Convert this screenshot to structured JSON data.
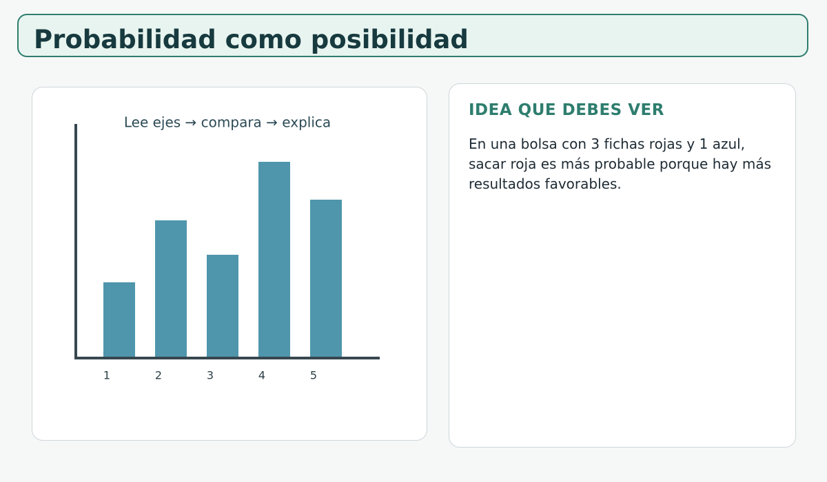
{
  "header": {
    "title": "Probabilidad como posibilidad"
  },
  "chart_data": {
    "type": "bar",
    "title": "Lee ejes → compara → explica",
    "categories": [
      "1",
      "2",
      "3",
      "4",
      "5"
    ],
    "values": [
      110,
      200,
      150,
      285,
      230
    ],
    "color": "#4f96ac",
    "ylim": [
      0,
      340
    ]
  },
  "panel": {
    "heading": "IDEA QUE DEBES VER",
    "text": "En una bolsa con 3 fichas rojas y 1 azul, sacar roja es más probable porque hay más resultados favorables."
  }
}
